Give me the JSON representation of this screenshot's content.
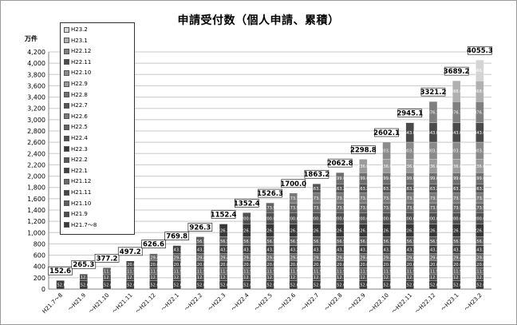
{
  "title": "申請受付数（個人申請、累積）",
  "unit_label": "万件",
  "chart_data": {
    "type": "bar",
    "stacked": true,
    "ylim": [
      0,
      4200
    ],
    "yticks": [
      0,
      200,
      400,
      600,
      800,
      1000,
      1200,
      1400,
      1600,
      1800,
      2000,
      2200,
      2400,
      2600,
      2800,
      3000,
      3200,
      3400,
      3600,
      3800,
      4000,
      4200
    ],
    "ytick_labels": [
      "0",
      "200",
      "400",
      "600",
      "800",
      "1,000",
      "1,200",
      "1,400",
      "1,600",
      "1,800",
      "2,000",
      "2,200",
      "2,400",
      "2,600",
      "2,800",
      "3,000",
      "3,200",
      "3,400",
      "3,600",
      "3,800",
      "4,000",
      "4,200"
    ],
    "categories": [
      "H21.7～8",
      "～H21.9",
      "～H21.10",
      "～H21.11",
      "～H21.12",
      "～H22.1",
      "～H22.2",
      "～H22.3",
      "～H22.4",
      "～H22.5",
      "～H22.6",
      "～H22.7",
      "～H22.8",
      "～H22.9",
      "～H22.10",
      "～H22.11",
      "～H22.12",
      "～H23.1",
      "～H23.2"
    ],
    "totals": [
      "152.6",
      "265.3",
      "377.2",
      "497.2",
      "626.6",
      "769.8",
      "926.3",
      "1152.4",
      "1352.4",
      "1526.3",
      "1700.0",
      "1863.2",
      "2062.8",
      "2298.8",
      "2602.1",
      "2945.1",
      "3321.2",
      "3689.2",
      "4055.3"
    ],
    "series": [
      {
        "name": "H21.7～8",
        "color": "#3a3a3a",
        "values": [
          152.6,
          152.6,
          152.6,
          152.6,
          152.6,
          152.6,
          152.6,
          152.6,
          152.6,
          152.6,
          152.6,
          152.6,
          152.6,
          152.6,
          152.6,
          152.6,
          152.6,
          152.6,
          152.6
        ],
        "labels": [
          "152.6",
          "152.6",
          "152.6",
          "152.6",
          "152.6",
          "152.6",
          "152.6",
          "152.6",
          "152.6",
          "152.6",
          "152.6",
          "152.6",
          "152.6",
          "152.6",
          "152.6",
          "152.6",
          "152.6",
          "152.6",
          "152.6"
        ]
      },
      {
        "name": "H21.9",
        "color": "#4d4d4d",
        "values": [
          0,
          112.7,
          112.7,
          112.7,
          112.7,
          112.7,
          112.7,
          112.7,
          112.7,
          112.7,
          112.7,
          112.7,
          112.7,
          112.7,
          112.7,
          112.7,
          112.7,
          112.7,
          112.7
        ],
        "labels": [
          "",
          "112.7",
          "112.7",
          "112.7",
          "112.7",
          "112.7",
          "112.7",
          "112.7",
          "112.7",
          "112.7",
          "112.7",
          "112.7",
          "112.7",
          "112.7",
          "112.7",
          "112.7",
          "112.7",
          "112.7",
          "112.7"
        ]
      },
      {
        "name": "H21.10",
        "color": "#5e5e5e",
        "values": [
          0,
          0,
          111.9,
          111.9,
          111.9,
          111.9,
          111.9,
          111.9,
          111.9,
          111.9,
          111.9,
          111.9,
          111.9,
          111.9,
          111.9,
          111.9,
          111.9,
          111.9,
          111.9
        ],
        "labels": [
          "",
          "",
          "111.9",
          "111.9",
          "111.9",
          "111.9",
          "111.9",
          "111.9",
          "111.9",
          "111.9",
          "111.9",
          "111.9",
          "111.9",
          "111.9",
          "111.9",
          "111.9",
          "111.9",
          "111.9",
          "111.9"
        ]
      },
      {
        "name": "H21.11",
        "color": "#454545",
        "values": [
          0,
          0,
          0,
          120.0,
          120.0,
          120.0,
          120.0,
          120.0,
          120.0,
          120.0,
          120.0,
          120.0,
          120.0,
          120.0,
          120.0,
          120.0,
          120.0,
          120.0,
          120.0
        ],
        "labels": [
          "",
          "",
          "",
          "120.0",
          "120.0",
          "120.0",
          "120.0",
          "120.0",
          "120.0",
          "120.0",
          "120.0",
          "120.0",
          "120.0",
          "120.0",
          "120.0",
          "120.0",
          "120.0",
          "120.0",
          "120.0"
        ]
      },
      {
        "name": "H21.12",
        "color": "#6a6a6a",
        "values": [
          0,
          0,
          0,
          0,
          129.4,
          129.4,
          129.4,
          129.4,
          129.4,
          129.4,
          129.4,
          129.4,
          129.4,
          129.4,
          129.4,
          129.4,
          129.4,
          129.4,
          129.4
        ],
        "labels": [
          "",
          "",
          "",
          "",
          "129.4",
          "129.4",
          "129.4",
          "129.4",
          "129.4",
          "129.4",
          "129.4",
          "129.4",
          "129.4",
          "129.4",
          "129.4",
          "129.4",
          "129.4",
          "129.4",
          "129.4"
        ]
      },
      {
        "name": "H22.1",
        "color": "#404040",
        "values": [
          0,
          0,
          0,
          0,
          0,
          143.2,
          143.2,
          143.2,
          143.2,
          143.2,
          143.2,
          143.2,
          143.2,
          143.2,
          143.2,
          143.2,
          143.2,
          143.2,
          143.2
        ],
        "labels": [
          "",
          "",
          "",
          "",
          "",
          "143.2",
          "143.2",
          "143.2",
          "143.2",
          "143.2",
          "143.2",
          "143.2",
          "143.2",
          "143.2",
          "143.2",
          "143.2",
          "143.2",
          "143.2",
          "143.2"
        ]
      },
      {
        "name": "H22.2",
        "color": "#5a5a5a",
        "values": [
          0,
          0,
          0,
          0,
          0,
          0,
          156.5,
          156.5,
          156.5,
          156.5,
          156.5,
          156.5,
          156.5,
          156.5,
          156.5,
          156.5,
          156.5,
          156.5,
          156.5
        ],
        "labels": [
          "",
          "",
          "",
          "",
          "",
          "",
          "156.5",
          "156.5",
          "156.5",
          "156.5",
          "156.5",
          "156.5",
          "156.5",
          "156.5",
          "156.5",
          "156.5",
          "156.5",
          "156.5",
          "156.5"
        ]
      },
      {
        "name": "H22.3",
        "color": "#383838",
        "values": [
          0,
          0,
          0,
          0,
          0,
          0,
          0,
          226.1,
          226.1,
          226.1,
          226.1,
          226.1,
          226.1,
          226.1,
          226.1,
          226.1,
          226.1,
          226.1,
          226.1
        ],
        "labels": [
          "",
          "",
          "",
          "",
          "",
          "",
          "",
          "226.1",
          "226.1",
          "226.1",
          "226.1",
          "226.1",
          "226.1",
          "226.1",
          "226.1",
          "226.1",
          "226.1",
          "226.1",
          "226.1"
        ]
      },
      {
        "name": "H22.4",
        "color": "#505050",
        "values": [
          0,
          0,
          0,
          0,
          0,
          0,
          0,
          0,
          200.0,
          200.0,
          200.0,
          200.0,
          200.0,
          200.0,
          200.0,
          200.0,
          200.0,
          200.0,
          200.0
        ],
        "labels": [
          "",
          "",
          "",
          "",
          "",
          "",
          "",
          "",
          "200.0",
          "200.0",
          "200.0",
          "200.0",
          "200.0",
          "200.0",
          "200.0",
          "200.0",
          "200.0",
          "200.0",
          "200.0"
        ]
      },
      {
        "name": "H22.5",
        "color": "#656565",
        "values": [
          0,
          0,
          0,
          0,
          0,
          0,
          0,
          0,
          0,
          173.9,
          173.9,
          173.9,
          173.9,
          173.9,
          173.9,
          173.9,
          173.9,
          173.9,
          173.9
        ],
        "labels": [
          "",
          "",
          "",
          "",
          "",
          "",
          "",
          "",
          "",
          "173.9",
          "173.9",
          "173.9",
          "173.9",
          "173.9",
          "173.9",
          "173.9",
          "173.9",
          "173.9",
          "173.9"
        ]
      },
      {
        "name": "H22.6",
        "color": "#7a7a7a",
        "values": [
          0,
          0,
          0,
          0,
          0,
          0,
          0,
          0,
          0,
          0,
          173.7,
          173.7,
          173.7,
          173.7,
          173.7,
          173.7,
          173.7,
          173.7,
          173.7
        ],
        "labels": [
          "",
          "",
          "",
          "",
          "",
          "",
          "",
          "",
          "",
          "",
          "173.7",
          "173.7",
          "173.7",
          "173.7",
          "173.7",
          "173.7",
          "173.7",
          "173.7",
          "173.7"
        ]
      },
      {
        "name": "H22.7",
        "color": "#555555",
        "values": [
          0,
          0,
          0,
          0,
          0,
          0,
          0,
          0,
          0,
          0,
          0,
          163.2,
          163.2,
          163.2,
          163.2,
          163.2,
          163.2,
          163.2,
          163.2
        ],
        "labels": [
          "",
          "",
          "",
          "",
          "",
          "",
          "",
          "",
          "",
          "",
          "",
          "163.2",
          "163.2",
          "163.2",
          "163.2",
          "163.2",
          "163.2",
          "163.2",
          "163.2"
        ]
      },
      {
        "name": "H22.8",
        "color": "#6f6f6f",
        "values": [
          0,
          0,
          0,
          0,
          0,
          0,
          0,
          0,
          0,
          0,
          0,
          0,
          199.6,
          199.6,
          199.6,
          199.6,
          199.6,
          199.6,
          199.6
        ],
        "labels": [
          "",
          "",
          "",
          "",
          "",
          "",
          "",
          "",
          "",
          "",
          "",
          "",
          "199.6",
          "199.6",
          "199.6",
          "199.6",
          "199.6",
          "199.6",
          "199.6"
        ]
      },
      {
        "name": "H22.9",
        "color": "#9a9a9a",
        "values": [
          0,
          0,
          0,
          0,
          0,
          0,
          0,
          0,
          0,
          0,
          0,
          0,
          0,
          236.0,
          236.0,
          236.0,
          236.0,
          236.0,
          236.0
        ],
        "labels": [
          "",
          "",
          "",
          "",
          "",
          "",
          "",
          "",
          "",
          "",
          "",
          "",
          "",
          "236.0",
          "236.0",
          "236.0",
          "236.0",
          "236.0",
          "236.0"
        ]
      },
      {
        "name": "H22.10",
        "color": "#8a8a8a",
        "values": [
          0,
          0,
          0,
          0,
          0,
          0,
          0,
          0,
          0,
          0,
          0,
          0,
          0,
          0,
          303.3,
          303.3,
          303.3,
          303.3,
          303.3
        ],
        "labels": [
          "",
          "",
          "",
          "",
          "",
          "",
          "",
          "",
          "",
          "",
          "",
          "",
          "",
          "",
          "303.3",
          "303.3",
          "303.3",
          "303.3",
          "303.3"
        ]
      },
      {
        "name": "H22.11",
        "color": "#4a4a4a",
        "values": [
          0,
          0,
          0,
          0,
          0,
          0,
          0,
          0,
          0,
          0,
          0,
          0,
          0,
          0,
          0,
          343.0,
          343.0,
          343.0,
          343.0
        ],
        "labels": [
          "",
          "",
          "",
          "",
          "",
          "",
          "",
          "",
          "",
          "",
          "",
          "",
          "",
          "",
          "",
          "343.0",
          "343.0",
          "343.0",
          "343.0"
        ]
      },
      {
        "name": "H22.12",
        "color": "#7f7f7f",
        "values": [
          0,
          0,
          0,
          0,
          0,
          0,
          0,
          0,
          0,
          0,
          0,
          0,
          0,
          0,
          0,
          0,
          376.1,
          376.1,
          376.1
        ],
        "labels": [
          "",
          "",
          "",
          "",
          "",
          "",
          "",
          "",
          "",
          "",
          "",
          "",
          "",
          "",
          "",
          "",
          "376.1",
          "376.1",
          "376.1"
        ]
      },
      {
        "name": "H23.1",
        "color": "#b0b0b0",
        "values": [
          0,
          0,
          0,
          0,
          0,
          0,
          0,
          0,
          0,
          0,
          0,
          0,
          0,
          0,
          0,
          0,
          0,
          368.0,
          368.0
        ],
        "labels": [
          "",
          "",
          "",
          "",
          "",
          "",
          "",
          "",
          "",
          "",
          "",
          "",
          "",
          "",
          "",
          "",
          "",
          "368.0",
          "368.0"
        ]
      },
      {
        "name": "H23.2",
        "color": "#d4d4d4",
        "values": [
          0,
          0,
          0,
          0,
          0,
          0,
          0,
          0,
          0,
          0,
          0,
          0,
          0,
          0,
          0,
          0,
          0,
          0,
          366.1
        ],
        "labels": [
          "",
          "",
          "",
          "",
          "",
          "",
          "",
          "",
          "",
          "",
          "",
          "",
          "",
          "",
          "",
          "",
          "",
          "",
          "366.1"
        ]
      }
    ]
  }
}
